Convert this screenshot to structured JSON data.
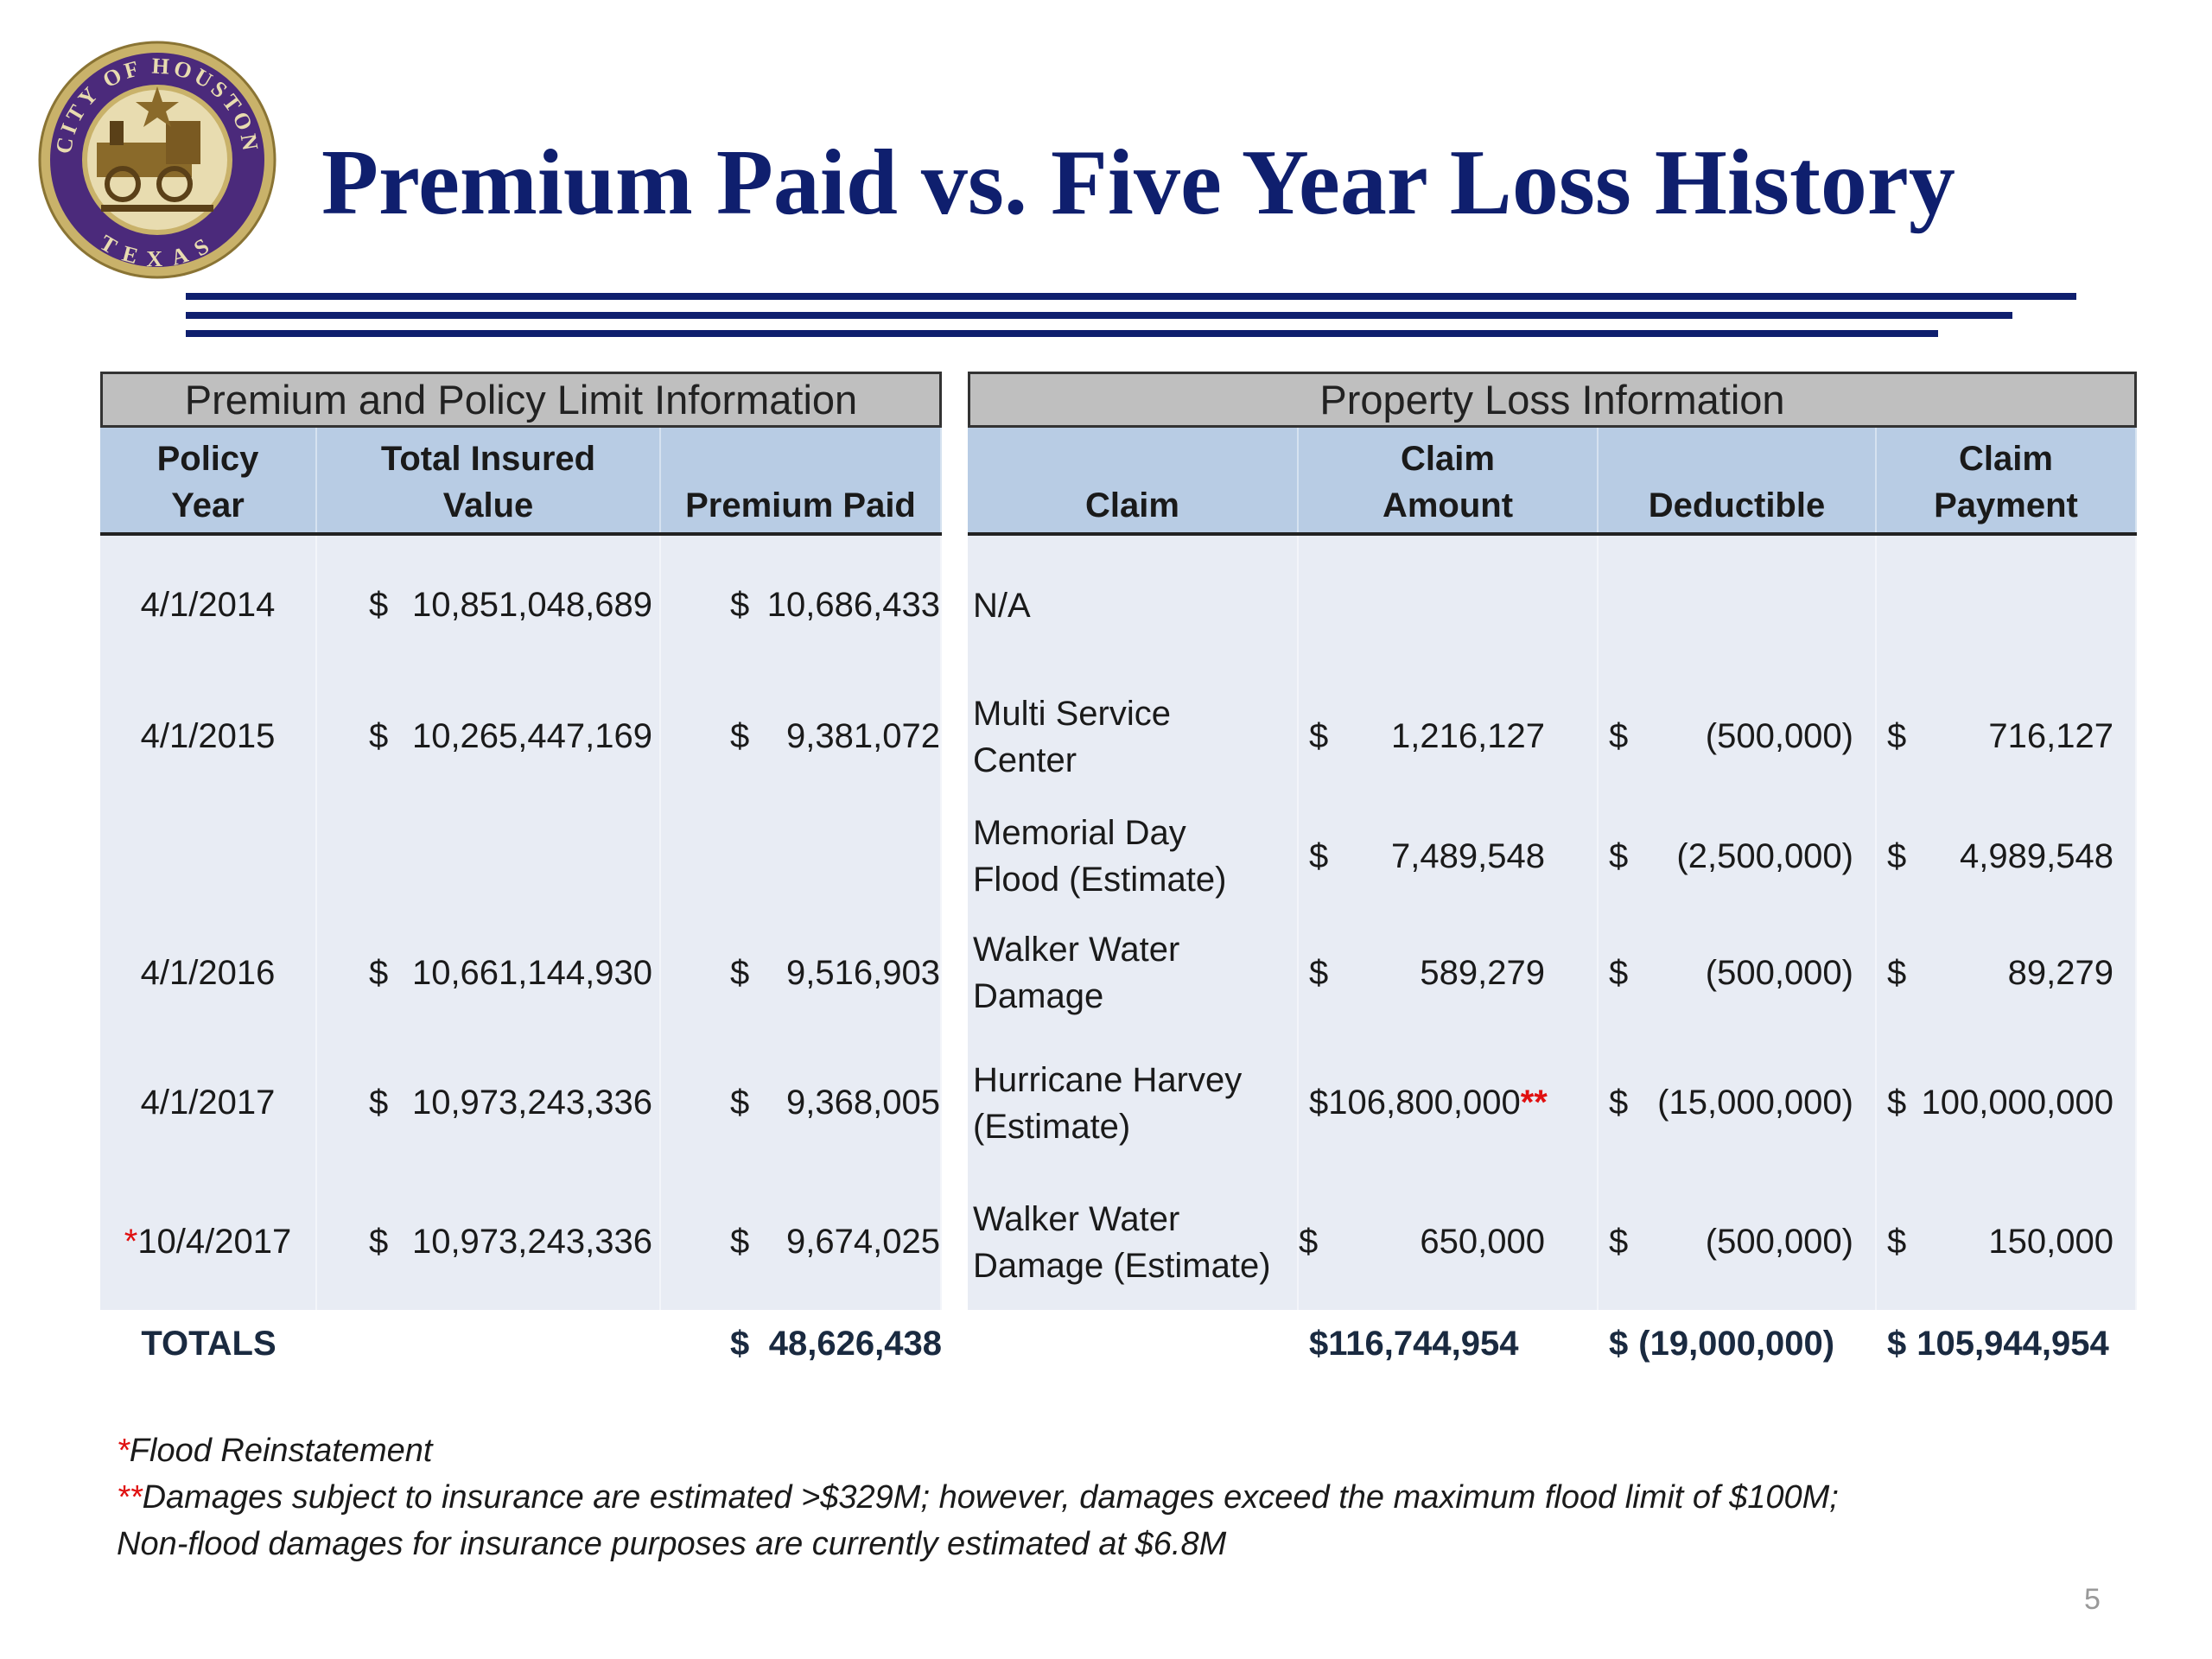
{
  "logo": {
    "top_text": "CITY OF HOUSTON",
    "bottom_text": "TEXAS"
  },
  "header": {
    "title": "Premium Paid vs. Five Year Loss History"
  },
  "currency": "$",
  "premium_table": {
    "title": "Premium and Policy Limit Information",
    "columns": [
      [
        "Policy",
        "Year"
      ],
      [
        "Total Insured",
        "Value"
      ],
      [
        "Premium Paid"
      ]
    ]
  },
  "loss_table": {
    "title": "Property Loss Information",
    "columns": [
      [
        "Claim"
      ],
      [
        "Claim",
        "Amount"
      ],
      [
        "Deductible"
      ],
      [
        "Claim",
        "Payment"
      ]
    ]
  },
  "rows": [
    {
      "policy_year": "4/1/2014",
      "total_insured_value": "10,851,048,689",
      "premium_paid": "10,686,433",
      "claim": [
        "N/A"
      ]
    },
    {
      "policy_year": "4/1/2015",
      "total_insured_value": "10,265,447,169",
      "premium_paid": "9,381,072",
      "claim": [
        "Multi Service",
        "Center"
      ],
      "claim_amount": "1,216,127",
      "deductible": "(500,000)",
      "claim_payment": "716,127"
    },
    {
      "claim": [
        "Memorial Day",
        "Flood (Estimate)"
      ],
      "claim_amount": "7,489,548",
      "deductible": "(2,500,000)",
      "claim_payment": "4,989,548"
    },
    {
      "policy_year": "4/1/2016",
      "total_insured_value": "10,661,144,930",
      "premium_paid": "9,516,903",
      "claim": [
        "Walker Water",
        "Damage"
      ],
      "claim_amount": "589,279",
      "deductible": "(500,000)",
      "claim_payment": "89,279"
    },
    {
      "policy_year": "4/1/2017",
      "total_insured_value": "10,973,243,336",
      "premium_paid": "9,368,005",
      "claim": [
        "Hurricane Harvey",
        "(Estimate)"
      ],
      "claim_amount": "106,800,000",
      "amount_mark": "**",
      "deductible": "(15,000,000)",
      "claim_payment": "100,000,000"
    },
    {
      "policy_mark": "*",
      "policy_year": "10/4/2017",
      "total_insured_value": "10,973,243,336",
      "premium_paid": "9,674,025",
      "claim": [
        "Walker Water",
        "Damage (Estimate)"
      ],
      "claim_amount": "650,000",
      "deductible": "(500,000)",
      "claim_payment": "150,000"
    }
  ],
  "totals": {
    "label": "TOTALS",
    "premium_paid": "48,626,438",
    "claim_amount": "116,744,954",
    "deductible": "(19,000,000)",
    "claim_payment": "105,944,954"
  },
  "footnotes": [
    {
      "mark": "*",
      "text": "Flood Reinstatement"
    },
    {
      "mark": "**",
      "text": "Damages subject to insurance are estimated >$329M; however, damages exceed the maximum flood limit of $100M;"
    },
    {
      "text": "Non-flood damages for insurance purposes are currently estimated at $6.8M"
    }
  ],
  "page_number": "5"
}
